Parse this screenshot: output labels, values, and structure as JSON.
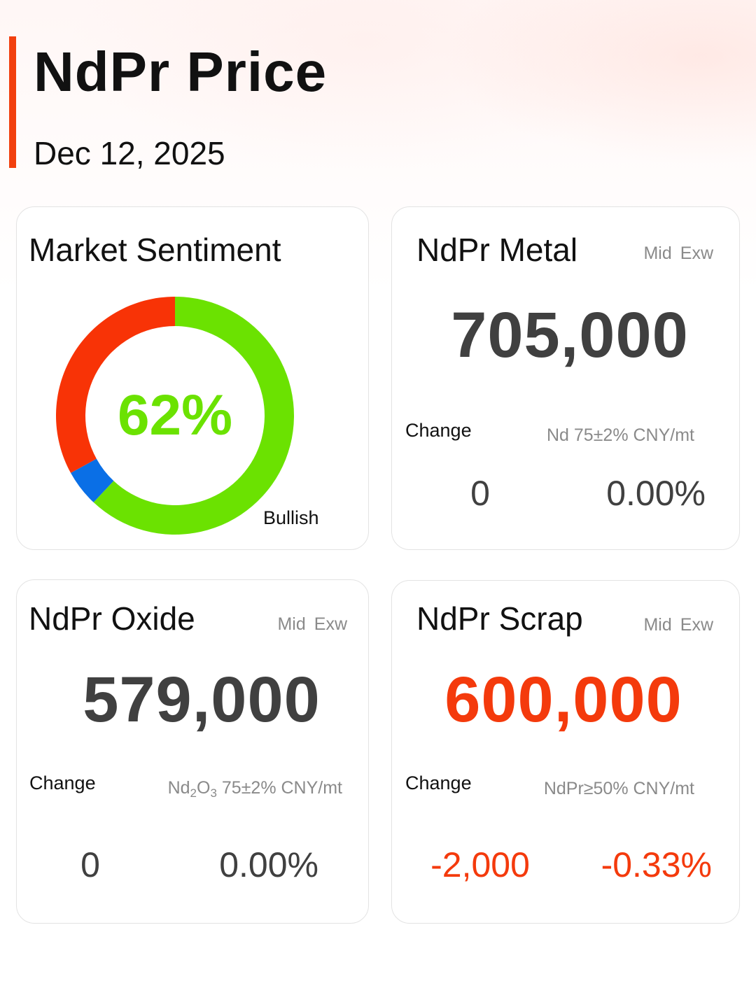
{
  "header": {
    "title": "NdPr Price",
    "date": "Dec 12, 2025"
  },
  "sentiment": {
    "title": "Market Sentiment",
    "percent_label": "62%",
    "legend_label": "Bullish",
    "segments": [
      {
        "name": "bullish",
        "value": 62,
        "color": "#6be201"
      },
      {
        "name": "neutral",
        "value": 5,
        "color": "#0a6fe6"
      },
      {
        "name": "bearish",
        "value": 33,
        "color": "#f83306"
      }
    ]
  },
  "metal": {
    "title": "NdPr Metal",
    "mid": "Mid",
    "exw": "Exw",
    "price": "705,000",
    "change_label": "Change",
    "spec": "Nd 75±2% CNY/mt",
    "change_abs": "0",
    "change_pct": "0.00%"
  },
  "oxide": {
    "title": "NdPr Oxide",
    "mid": "Mid",
    "exw": "Exw",
    "price": "579,000",
    "change_label": "Change",
    "spec_prefix": "Nd",
    "spec_sub1": "2",
    "spec_mid": "O",
    "spec_sub2": "3",
    "spec_suffix": " 75±2% CNY/mt",
    "change_abs": "0",
    "change_pct": "0.00%"
  },
  "scrap": {
    "title": "NdPr Scrap",
    "mid": "Mid",
    "exw": "Exw",
    "price": "600,000",
    "change_label": "Change",
    "spec": "NdPr≥50% CNY/mt",
    "change_abs": "-2,000",
    "change_pct": "-0.33%"
  },
  "colors": {
    "accent": "#f2400f",
    "up_green": "#6be201",
    "down_red": "#f43a0c",
    "price_dark": "#404040"
  }
}
